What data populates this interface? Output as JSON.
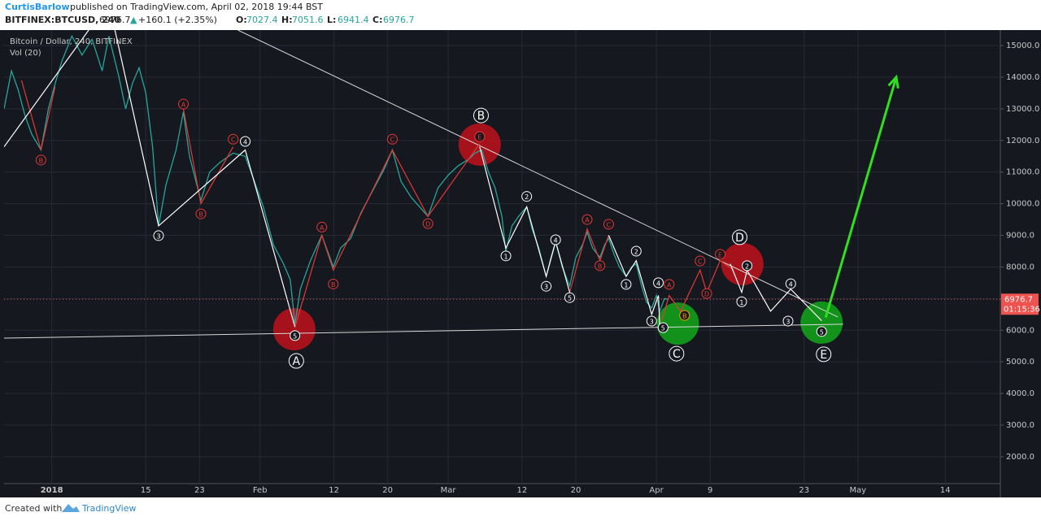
{
  "header": {
    "author": "CurtisBarlow",
    "published": "published on TradingView.com, April 02, 2018 19:44 BST",
    "symbol": "BITFINEX:BTCUSD, 240",
    "last": "6976.7",
    "arrow": "▲",
    "change": "+160.1 (+2.35%)",
    "ohlc": [
      {
        "label": "O:",
        "value": "7027.4"
      },
      {
        "label": "H:",
        "value": "7051.6"
      },
      {
        "label": "L:",
        "value": "6941.4"
      },
      {
        "label": "C:",
        "value": "6976.7"
      }
    ]
  },
  "chart_data": {
    "type": "line",
    "indicator": "Vol (20)",
    "xlim": [
      -7.1,
      141.2
    ],
    "ylim": [
      1150,
      15490
    ],
    "xticks": [
      {
        "value": 0,
        "label": "2018"
      },
      {
        "value": 14,
        "label": "15"
      },
      {
        "value": 22,
        "label": "23"
      },
      {
        "value": 31,
        "label": "Feb"
      },
      {
        "value": 42,
        "label": "12"
      },
      {
        "value": 50,
        "label": "20"
      },
      {
        "value": 59,
        "label": "Mar"
      },
      {
        "value": 70,
        "label": "12"
      },
      {
        "value": 78,
        "label": "20"
      },
      {
        "value": 90,
        "label": "Apr"
      },
      {
        "value": 98,
        "label": "9"
      },
      {
        "value": 112,
        "label": "23"
      },
      {
        "value": 120,
        "label": "May"
      },
      {
        "value": 133,
        "label": "14"
      }
    ],
    "yticks": [
      {
        "value": 2000,
        "label": "2000.0"
      },
      {
        "value": 3000,
        "label": "3000.0"
      },
      {
        "value": 4000,
        "label": "4000.0"
      },
      {
        "value": 5000,
        "label": "5000.0"
      },
      {
        "value": 6000,
        "label": "6000.0"
      },
      {
        "value": 7000,
        "label": "7000.0"
      },
      {
        "value": 8000,
        "label": "8000.0"
      },
      {
        "value": 9000,
        "label": "9000.0"
      },
      {
        "value": 10000,
        "label": "10000.0"
      },
      {
        "value": 11000,
        "label": "11000.0"
      },
      {
        "value": 12000,
        "label": "12000.0"
      },
      {
        "value": 13000,
        "label": "13000.0"
      },
      {
        "value": 14000,
        "label": "14000.0"
      },
      {
        "value": 15000,
        "label": "15000.0"
      }
    ],
    "grid": true,
    "series": [
      {
        "name": "Bitcoin / Dollar, 240, BITFINEX",
        "color": "#26a69a",
        "x": [
          -7.1,
          -6,
          -5,
          -4,
          -3,
          -1.6,
          -0.5,
          0.5,
          1.5,
          3,
          4.5,
          6,
          7.5,
          8.5,
          10,
          11,
          12,
          13,
          14,
          15,
          15.9,
          17,
          18.5,
          19.6,
          20.5,
          22.2,
          23.5,
          25,
          27,
          28.8,
          30,
          31.5,
          33,
          34.5,
          35.5,
          36.2,
          37,
          38.5,
          40.2,
          41.9,
          43,
          44.5,
          46,
          48,
          49.5,
          50.7,
          52,
          53.5,
          56,
          57.5,
          59,
          60.5,
          62,
          63,
          64,
          65,
          66,
          67,
          67.6,
          68.5,
          69.5,
          70.7,
          71.5,
          72.5,
          73.6,
          74.3,
          75,
          76,
          77.1,
          78,
          79,
          79.7,
          80.5,
          81.6,
          82.3,
          82.9,
          83.7,
          84.5,
          85.5,
          86.3,
          87,
          87.8,
          88.5,
          89.3,
          90,
          90.5,
          91.2,
          91.8
        ],
        "values": [
          13000,
          14200,
          13600,
          12800,
          12200,
          11700,
          13000,
          13800,
          14500,
          15300,
          14700,
          15200,
          14200,
          15300,
          14000,
          13000,
          13800,
          14300,
          13500,
          11800,
          9300,
          10600,
          11700,
          12900,
          11500,
          10100,
          11000,
          11300,
          11600,
          11500,
          10800,
          9900,
          8700,
          8100,
          7600,
          6200,
          7300,
          8200,
          9000,
          8000,
          8600,
          8900,
          9700,
          10500,
          11100,
          11700,
          10700,
          10200,
          9600,
          10500,
          10900,
          11200,
          11400,
          11600,
          11700,
          11000,
          10500,
          9600,
          8500,
          9300,
          9600,
          9900,
          9200,
          8600,
          7700,
          8300,
          8800,
          8000,
          7400,
          8300,
          8700,
          9100,
          8600,
          8300,
          8700,
          8900,
          8400,
          8000,
          7700,
          8000,
          8100,
          7400,
          6900,
          6700,
          7100,
          6600,
          7000,
          6976.7
        ]
      }
    ],
    "last_price": {
      "value": 6976.7,
      "label": "6976.7",
      "countdown": "01:15:36",
      "color": "#ef5350"
    },
    "trend_lines": [
      {
        "x": [
          27.7,
          117
        ],
        "values": [
          15490,
          6420
        ],
        "color": "#d9d9d9"
      },
      {
        "x": [
          -7.1,
          117.8
        ],
        "values": [
          5750,
          6190
        ],
        "color": "#d9d9d9"
      }
    ],
    "wave_paths": [
      {
        "x": [
          -4.5,
          -1.6,
          0.5
        ],
        "values": [
          13900,
          11700,
          13700
        ],
        "color": "#e53935"
      },
      {
        "x": [
          19.6,
          22.2,
          27
        ],
        "values": [
          13000,
          10000,
          11800
        ],
        "color": "#e53935"
      },
      {
        "x": [
          36.2,
          40.2,
          41.9,
          50.7,
          56,
          63.7
        ],
        "values": [
          6100,
          9000,
          7900,
          11700,
          9600,
          11900
        ],
        "color": "#e53935"
      },
      {
        "x": [
          77.1,
          79.7,
          81.6,
          82.9
        ],
        "values": [
          7200,
          9200,
          8200,
          9000
        ],
        "color": "#e53935"
      },
      {
        "x": [
          90.8,
          91.9,
          93.6,
          96.5,
          97.5,
          99.5,
          101.5
        ],
        "values": [
          6300,
          7100,
          6600,
          7900,
          7200,
          8200,
          7900
        ],
        "color": "#e53935"
      },
      {
        "x": [
          -7.1,
          5.5
        ],
        "values": [
          11800,
          15490
        ],
        "color": "#ffffff"
      },
      {
        "x": [
          9.4,
          15.9,
          28.8,
          36.2
        ],
        "values": [
          15490,
          9300,
          11700,
          6100
        ],
        "color": "#ffffff"
      },
      {
        "x": [
          63.7,
          67.6,
          70.7,
          73.6,
          75,
          77.1
        ],
        "values": [
          11800,
          8600,
          9900,
          7700,
          8800,
          7200
        ],
        "color": "#ffffff"
      },
      {
        "x": [
          82.9,
          85.5,
          87,
          89.3,
          90.3,
          90.5
        ],
        "values": [
          9000,
          7700,
          8200,
          6500,
          7100,
          6100
        ],
        "color": "#ffffff"
      },
      {
        "x": [
          101,
          102.7,
          103.5,
          107,
          110,
          114.6
        ],
        "values": [
          8100,
          7200,
          7900,
          6600,
          7300,
          6300
        ],
        "color": "#ffffff"
      }
    ],
    "arrow": {
      "x": [
        115.2,
        125.7
      ],
      "values": [
        6400,
        14000
      ],
      "color": "#33dd22"
    },
    "zones": [
      {
        "x": 63.7,
        "y": 11870,
        "color": "#c0121b"
      },
      {
        "x": 36.1,
        "y": 6030,
        "color": "#c0121b"
      },
      {
        "x": 102.8,
        "y": 8090,
        "color": "#c0121b"
      },
      {
        "x": 93.2,
        "y": 6210,
        "color": "#12a81a"
      },
      {
        "x": 114.6,
        "y": 6240,
        "color": "#12a81a"
      }
    ],
    "wave_labels": [
      {
        "text": "A",
        "x": 36.4,
        "y": 5030,
        "color": "#ffffff",
        "size": "big"
      },
      {
        "text": "B",
        "x": 63.9,
        "y": 12790,
        "color": "#ffffff",
        "size": "big"
      },
      {
        "text": "C",
        "x": 93,
        "y": 5260,
        "color": "#ffffff",
        "size": "big"
      },
      {
        "text": "D",
        "x": 102.4,
        "y": 8940,
        "color": "#ffffff",
        "size": "big"
      },
      {
        "text": "E",
        "x": 114.9,
        "y": 5240,
        "color": "#ffffff",
        "size": "big"
      },
      {
        "text": "B",
        "x": -1.6,
        "y": 11380,
        "color": "#e53935",
        "size": "small"
      },
      {
        "text": "3",
        "x": 15.9,
        "y": 8990,
        "color": "#ffffff",
        "size": "small"
      },
      {
        "text": "A",
        "x": 19.6,
        "y": 13150,
        "color": "#e53935",
        "size": "small"
      },
      {
        "text": "B",
        "x": 22.2,
        "y": 9680,
        "color": "#e53935",
        "size": "small"
      },
      {
        "text": "C",
        "x": 27,
        "y": 12040,
        "color": "#e53935",
        "size": "small"
      },
      {
        "text": "4",
        "x": 28.8,
        "y": 11970,
        "color": "#ffffff",
        "size": "small"
      },
      {
        "text": "5",
        "x": 36.2,
        "y": 5830,
        "color": "#ffffff",
        "size": "small"
      },
      {
        "text": "A",
        "x": 40.2,
        "y": 9260,
        "color": "#e53935",
        "size": "small"
      },
      {
        "text": "B",
        "x": 41.9,
        "y": 7460,
        "color": "#e53935",
        "size": "small"
      },
      {
        "text": "C",
        "x": 50.7,
        "y": 12040,
        "color": "#e53935",
        "size": "small"
      },
      {
        "text": "D",
        "x": 56,
        "y": 9370,
        "color": "#e53935",
        "size": "small"
      },
      {
        "text": "E",
        "x": 63.7,
        "y": 12120,
        "color": "#e53935",
        "size": "small"
      },
      {
        "text": "1",
        "x": 67.6,
        "y": 8350,
        "color": "#ffffff",
        "size": "small"
      },
      {
        "text": "2",
        "x": 70.7,
        "y": 10230,
        "color": "#ffffff",
        "size": "small"
      },
      {
        "text": "3",
        "x": 73.6,
        "y": 7390,
        "color": "#ffffff",
        "size": "small"
      },
      {
        "text": "4",
        "x": 75,
        "y": 8860,
        "color": "#ffffff",
        "size": "small"
      },
      {
        "text": "5",
        "x": 77.1,
        "y": 7030,
        "color": "#ffffff",
        "size": "small"
      },
      {
        "text": "A",
        "x": 79.7,
        "y": 9500,
        "color": "#e53935",
        "size": "small"
      },
      {
        "text": "B",
        "x": 81.6,
        "y": 8040,
        "color": "#e53935",
        "size": "small"
      },
      {
        "text": "C",
        "x": 82.9,
        "y": 9350,
        "color": "#e53935",
        "size": "small"
      },
      {
        "text": "1",
        "x": 85.5,
        "y": 7450,
        "color": "#ffffff",
        "size": "small"
      },
      {
        "text": "2",
        "x": 87,
        "y": 8500,
        "color": "#ffffff",
        "size": "small"
      },
      {
        "text": "3",
        "x": 89.3,
        "y": 6290,
        "color": "#ffffff",
        "size": "small"
      },
      {
        "text": "4",
        "x": 90.3,
        "y": 7500,
        "color": "#ffffff",
        "size": "small"
      },
      {
        "text": "5",
        "x": 91,
        "y": 6080,
        "color": "#ffffff",
        "size": "small"
      },
      {
        "text": "A",
        "x": 91.9,
        "y": 7450,
        "color": "#e53935",
        "size": "small"
      },
      {
        "text": "B",
        "x": 94.2,
        "y": 6470,
        "color": "#ff9800",
        "size": "small"
      },
      {
        "text": "C",
        "x": 96.5,
        "y": 8190,
        "color": "#e53935",
        "size": "small"
      },
      {
        "text": "D",
        "x": 97.5,
        "y": 7160,
        "color": "#e53935",
        "size": "small"
      },
      {
        "text": "E",
        "x": 99.5,
        "y": 8400,
        "color": "#e53935",
        "size": "small"
      },
      {
        "text": "1",
        "x": 102.7,
        "y": 6900,
        "color": "#ffffff",
        "size": "small"
      },
      {
        "text": "2",
        "x": 103.5,
        "y": 8040,
        "color": "#ffffff",
        "size": "small"
      },
      {
        "text": "3",
        "x": 109.6,
        "y": 6290,
        "color": "#ffffff",
        "size": "small"
      },
      {
        "text": "4",
        "x": 110,
        "y": 7470,
        "color": "#ffffff",
        "size": "small"
      },
      {
        "text": "5",
        "x": 114.6,
        "y": 5960,
        "color": "#ffffff",
        "size": "small"
      }
    ]
  },
  "footer": {
    "created": "Created with",
    "brand": "TradingView"
  }
}
